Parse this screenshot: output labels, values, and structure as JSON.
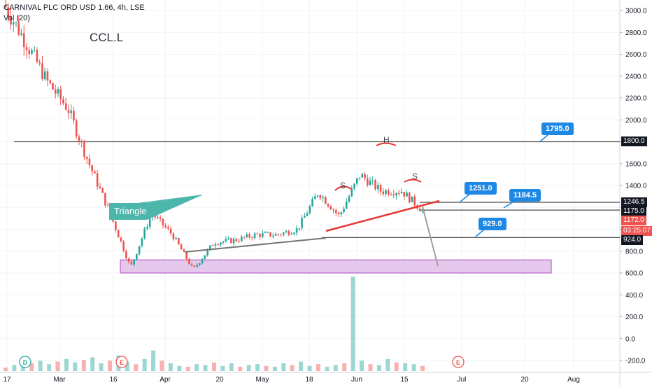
{
  "header": {
    "title": "CARNIVAL PLC ORD USD 1.66, 4h, LSE",
    "volume_label": "Vol (20)",
    "symbol_note": "CCL.L"
  },
  "price_labels": {
    "line_1800": "1800.0",
    "line_1246": "1246.5",
    "line_1175": "1175.0",
    "last_price": "1172.0",
    "countdown": "03:25:07",
    "line_924": "924.0"
  },
  "annotations": {
    "triangle": "Triangle",
    "h": "H",
    "s_left": "S",
    "s_right": "S"
  },
  "callouts": [
    "1795.0",
    "1251.0",
    "1184.5",
    "929.0"
  ],
  "event_markers": [
    "D",
    "E",
    "E"
  ],
  "colors": {
    "up": "#26a69a",
    "down": "#ef5350",
    "neckline": "#e53935",
    "hline": "#4a4a4a",
    "callout": "#1e88e5",
    "support_zone": "#e1bee7",
    "triangle_label": "#4db6ac"
  },
  "chart_data": {
    "type": "candlestick",
    "interval": "4h",
    "y_ticks": [
      3000,
      2800,
      2600,
      2400,
      2200,
      2000,
      1800,
      1600,
      1400,
      1200,
      1000,
      800,
      600,
      400,
      200,
      0,
      -200
    ],
    "y_tick_labels": [
      "3000.0",
      "2800.0",
      "2600.0",
      "2400.0",
      "2200.0",
      "2000.0",
      "1800.0",
      "1600.0",
      "1400.0",
      "1200.0",
      "1000.0",
      "800.0",
      "600.0",
      "400.0",
      "200.0",
      "0.0",
      "-200.0"
    ],
    "x_tick_labels": [
      "17",
      "Mar",
      "16",
      "Apr",
      "20",
      "May",
      "18",
      "Jun",
      "15",
      "Jul",
      "20",
      "Aug"
    ],
    "price_path": [
      [
        3050,
        3030
      ],
      [
        2980,
        2700
      ],
      [
        2650,
        2350
      ],
      [
        2300,
        2100
      ],
      [
        1850,
        1600
      ],
      [
        1450,
        1150
      ],
      [
        950,
        650
      ],
      [
        900,
        1150
      ],
      [
        1300,
        950
      ],
      [
        880,
        630
      ],
      [
        800,
        880
      ],
      [
        850,
        900
      ],
      [
        1100,
        950
      ],
      [
        920,
        950
      ],
      [
        900,
        1000
      ],
      [
        1050,
        1340
      ],
      [
        1250,
        1120
      ],
      [
        1200,
        1500
      ],
      [
        1650,
        1350
      ],
      [
        1300,
        1350
      ],
      [
        1300,
        1172
      ]
    ],
    "volume_bars": [
      20,
      35,
      28,
      45,
      60,
      40,
      55,
      70,
      50,
      65,
      80,
      45,
      60,
      90,
      55,
      40,
      70,
      120,
      60,
      45,
      30,
      25,
      40,
      35,
      50,
      30,
      45,
      25,
      35,
      40,
      30,
      25,
      45,
      35,
      55,
      30,
      40,
      25,
      35,
      45,
      550,
      60,
      40,
      35,
      70,
      50,
      45,
      40,
      30
    ],
    "horizontal_levels": [
      1800,
      1246.5,
      1175,
      924
    ],
    "support_zone": [
      600,
      720
    ],
    "neckline": [
      [
        1090,
        1250
      ],
      [
        1137,
        1180
      ]
    ]
  }
}
